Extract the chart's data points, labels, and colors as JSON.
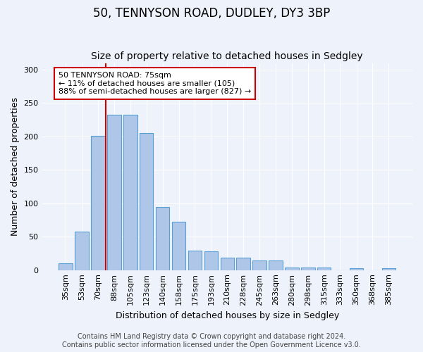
{
  "title1": "50, TENNYSON ROAD, DUDLEY, DY3 3BP",
  "title2": "Size of property relative to detached houses in Sedgley",
  "xlabel": "Distribution of detached houses by size in Sedgley",
  "ylabel": "Number of detached properties",
  "categories": [
    "35sqm",
    "53sqm",
    "70sqm",
    "88sqm",
    "105sqm",
    "123sqm",
    "140sqm",
    "158sqm",
    "175sqm",
    "193sqm",
    "210sqm",
    "228sqm",
    "245sqm",
    "263sqm",
    "280sqm",
    "298sqm",
    "315sqm",
    "333sqm",
    "350sqm",
    "368sqm",
    "385sqm"
  ],
  "values": [
    10,
    58,
    201,
    233,
    233,
    205,
    94,
    72,
    29,
    28,
    19,
    19,
    14,
    14,
    4,
    4,
    4,
    0,
    3,
    0,
    3
  ],
  "bar_color": "#aec6e8",
  "bar_edge_color": "#5a9fd4",
  "bar_width": 0.85,
  "vline_x_index": 2,
  "vline_color": "#cc0000",
  "annotation_text": "50 TENNYSON ROAD: 75sqm\n← 11% of detached houses are smaller (105)\n88% of semi-detached houses are larger (827) →",
  "annotation_box_color": "#ffffff",
  "annotation_box_edge": "#cc0000",
  "ylim": [
    0,
    310
  ],
  "yticks": [
    0,
    50,
    100,
    150,
    200,
    250,
    300
  ],
  "bg_color": "#eef3fb",
  "plot_bg_color": "#eef3fb",
  "footer1": "Contains HM Land Registry data © Crown copyright and database right 2024.",
  "footer2": "Contains public sector information licensed under the Open Government Licence v3.0.",
  "title1_fontsize": 12,
  "title2_fontsize": 10,
  "xlabel_fontsize": 9,
  "ylabel_fontsize": 9,
  "tick_fontsize": 8,
  "footer_fontsize": 7,
  "annot_fontsize": 8
}
